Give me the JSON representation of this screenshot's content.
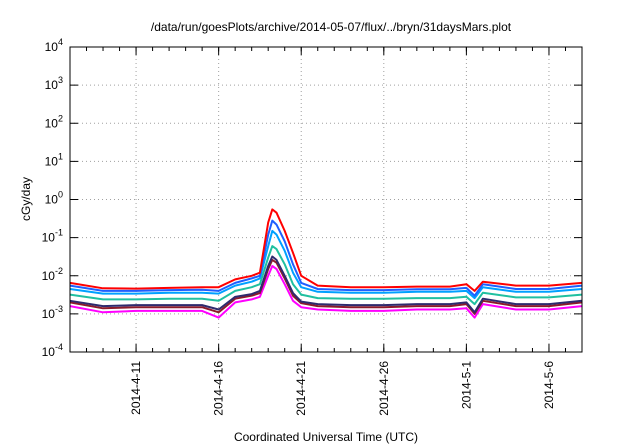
{
  "chart_data": {
    "type": "line",
    "title": "/data/run/goesPlots/archive/2014-05-07/flux/../bryn/31daysMars.plot",
    "xlabel": "Coordinated Universal Time (UTC)",
    "ylabel": "cGy/day",
    "yscale": "log",
    "ylim": [
      0.0001,
      10000
    ],
    "xlim": [
      "2014-04-07",
      "2014-05-08"
    ],
    "grid": true,
    "y_ticks": [
      {
        "base": "10",
        "exp": "-4"
      },
      {
        "base": "10",
        "exp": "-3"
      },
      {
        "base": "10",
        "exp": "-2"
      },
      {
        "base": "10",
        "exp": "-1"
      },
      {
        "base": "10",
        "exp": "0"
      },
      {
        "base": "10",
        "exp": "1"
      },
      {
        "base": "10",
        "exp": "2"
      },
      {
        "base": "10",
        "exp": "3"
      },
      {
        "base": "10",
        "exp": "4"
      }
    ],
    "x_ticks": [
      "2014-4-11",
      "2014-4-16",
      "2014-4-21",
      "2014-4-26",
      "2014-5-1",
      "2014-5-6"
    ],
    "x_tick_dates": [
      "2014-04-11",
      "2014-04-16",
      "2014-04-21",
      "2014-04-26",
      "2014-05-01",
      "2014-05-06"
    ],
    "x": [
      "2014-04-07",
      "2014-04-09",
      "2014-04-11",
      "2014-04-13",
      "2014-04-15",
      "2014-04-16",
      "2014-04-17",
      "2014-04-18",
      "2014-04-18T12:00",
      "2014-04-19",
      "2014-04-19T06:00",
      "2014-04-19T12:00",
      "2014-04-20",
      "2014-04-20T12:00",
      "2014-04-21",
      "2014-04-22",
      "2014-04-24",
      "2014-04-26",
      "2014-04-28",
      "2014-04-30",
      "2014-05-01",
      "2014-05-01T12:00",
      "2014-05-02",
      "2014-05-04",
      "2014-05-06",
      "2014-05-08"
    ],
    "series": [
      {
        "color": "#ff0000",
        "values": [
          0.0065,
          0.0047,
          0.0046,
          0.0048,
          0.005,
          0.005,
          0.008,
          0.01,
          0.012,
          0.25,
          0.55,
          0.45,
          0.15,
          0.04,
          0.01,
          0.0055,
          0.005,
          0.005,
          0.0052,
          0.0052,
          0.006,
          0.004,
          0.007,
          0.0055,
          0.0055,
          0.0065
        ]
      },
      {
        "color": "#1f5fff",
        "values": [
          0.0055,
          0.004,
          0.004,
          0.0042,
          0.0043,
          0.004,
          0.0065,
          0.0085,
          0.01,
          0.12,
          0.28,
          0.22,
          0.08,
          0.02,
          0.0065,
          0.0045,
          0.0042,
          0.0042,
          0.0044,
          0.0044,
          0.0048,
          0.003,
          0.006,
          0.0045,
          0.0045,
          0.0055
        ]
      },
      {
        "color": "#00a0ff",
        "values": [
          0.0045,
          0.0034,
          0.0034,
          0.0036,
          0.0036,
          0.0034,
          0.0055,
          0.007,
          0.0085,
          0.06,
          0.15,
          0.12,
          0.045,
          0.012,
          0.005,
          0.0038,
          0.0036,
          0.0036,
          0.0038,
          0.0038,
          0.004,
          0.0026,
          0.005,
          0.0038,
          0.0038,
          0.0045
        ]
      },
      {
        "color": "#20c0a0",
        "values": [
          0.0032,
          0.0024,
          0.0024,
          0.0025,
          0.0025,
          0.0022,
          0.004,
          0.005,
          0.006,
          0.03,
          0.06,
          0.05,
          0.02,
          0.006,
          0.0032,
          0.0026,
          0.0025,
          0.0025,
          0.0026,
          0.0026,
          0.0028,
          0.0018,
          0.0036,
          0.0027,
          0.0027,
          0.0032
        ]
      },
      {
        "color": "#2e2a6e",
        "values": [
          0.0022,
          0.0016,
          0.0017,
          0.0017,
          0.0017,
          0.0013,
          0.0028,
          0.0033,
          0.004,
          0.018,
          0.032,
          0.026,
          0.01,
          0.0035,
          0.0021,
          0.0018,
          0.0017,
          0.0017,
          0.0018,
          0.0018,
          0.002,
          0.0011,
          0.0025,
          0.0018,
          0.0018,
          0.0022
        ]
      },
      {
        "color": "#8b1a2b",
        "values": [
          0.002,
          0.0014,
          0.0015,
          0.0015,
          0.0015,
          0.0011,
          0.0025,
          0.003,
          0.0035,
          0.015,
          0.026,
          0.022,
          0.0085,
          0.003,
          0.0019,
          0.0016,
          0.0015,
          0.0015,
          0.0016,
          0.0016,
          0.0018,
          0.001,
          0.0022,
          0.0016,
          0.0016,
          0.002
        ]
      },
      {
        "color": "#ff00ff",
        "values": [
          0.0016,
          0.0011,
          0.0012,
          0.0012,
          0.0012,
          0.0008,
          0.002,
          0.0024,
          0.0028,
          0.01,
          0.018,
          0.015,
          0.006,
          0.0022,
          0.0015,
          0.0013,
          0.0012,
          0.0012,
          0.0013,
          0.0013,
          0.0014,
          0.0008,
          0.0018,
          0.0013,
          0.0013,
          0.0016
        ]
      }
    ]
  }
}
